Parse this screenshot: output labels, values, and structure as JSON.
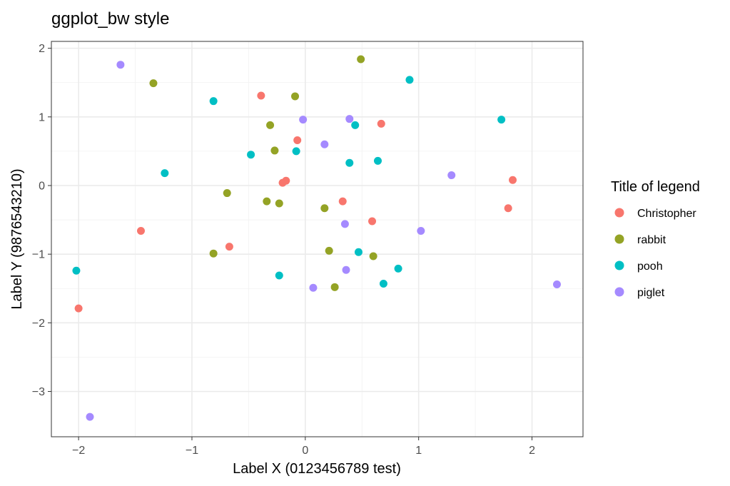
{
  "chart_data": {
    "type": "scatter",
    "title": "ggplot_bw style",
    "xlabel": "Label X (0123456789 test)",
    "ylabel": "Label Y (9876543210)",
    "xlim": [
      -2.24,
      2.45
    ],
    "ylim": [
      -3.66,
      2.1
    ],
    "xticks": [
      -2,
      -1,
      0,
      1,
      2
    ],
    "yticks": [
      -3,
      -2,
      -1,
      0,
      1,
      2
    ],
    "xtick_labels": [
      "−2",
      "−1",
      "0",
      "1",
      "2"
    ],
    "ytick_labels": [
      "−3",
      "−2",
      "−1",
      "0",
      "1",
      "2"
    ],
    "grid": true,
    "legend": {
      "title": "Title of legend",
      "position": "right"
    },
    "series": [
      {
        "name": "Christopher",
        "color": "#F8766D",
        "points": [
          {
            "x": -0.39,
            "y": 1.31
          },
          {
            "x": -0.07,
            "y": 0.66
          },
          {
            "x": -0.17,
            "y": 0.07
          },
          {
            "x": -0.2,
            "y": 0.04
          },
          {
            "x": 0.67,
            "y": 0.9
          },
          {
            "x": 0.33,
            "y": -0.23
          },
          {
            "x": 0.59,
            "y": -0.52
          },
          {
            "x": 1.83,
            "y": 0.08
          },
          {
            "x": 1.79,
            "y": -0.33
          },
          {
            "x": -1.45,
            "y": -0.66
          },
          {
            "x": -0.67,
            "y": -0.89
          },
          {
            "x": -2.0,
            "y": -1.79
          }
        ]
      },
      {
        "name": "rabbit",
        "color": "#94A325",
        "points": [
          {
            "x": 0.49,
            "y": 1.84
          },
          {
            "x": -1.34,
            "y": 1.49
          },
          {
            "x": -0.09,
            "y": 1.3
          },
          {
            "x": -0.31,
            "y": 0.88
          },
          {
            "x": -0.27,
            "y": 0.51
          },
          {
            "x": -0.69,
            "y": -0.11
          },
          {
            "x": -0.34,
            "y": -0.23
          },
          {
            "x": -0.23,
            "y": -0.26
          },
          {
            "x": 0.17,
            "y": -0.33
          },
          {
            "x": 0.21,
            "y": -0.95
          },
          {
            "x": 0.6,
            "y": -1.03
          },
          {
            "x": -0.81,
            "y": -0.99
          },
          {
            "x": 0.26,
            "y": -1.48
          }
        ]
      },
      {
        "name": "pooh",
        "color": "#00BFC4",
        "points": [
          {
            "x": 0.92,
            "y": 1.54
          },
          {
            "x": -0.81,
            "y": 1.23
          },
          {
            "x": 1.73,
            "y": 0.96
          },
          {
            "x": 0.44,
            "y": 0.88
          },
          {
            "x": -0.48,
            "y": 0.45
          },
          {
            "x": -0.08,
            "y": 0.5
          },
          {
            "x": 0.64,
            "y": 0.36
          },
          {
            "x": 0.39,
            "y": 0.33
          },
          {
            "x": -1.24,
            "y": 0.18
          },
          {
            "x": -2.02,
            "y": -1.24
          },
          {
            "x": -0.23,
            "y": -1.31
          },
          {
            "x": 0.47,
            "y": -0.97
          },
          {
            "x": 0.82,
            "y": -1.21
          },
          {
            "x": 0.69,
            "y": -1.43
          }
        ]
      },
      {
        "name": "piglet",
        "color": "#A58AFF",
        "points": [
          {
            "x": -1.63,
            "y": 1.76
          },
          {
            "x": -0.02,
            "y": 0.96
          },
          {
            "x": 0.39,
            "y": 0.97
          },
          {
            "x": 0.17,
            "y": 0.6
          },
          {
            "x": 1.29,
            "y": 0.15
          },
          {
            "x": 0.35,
            "y": -0.56
          },
          {
            "x": 1.02,
            "y": -0.66
          },
          {
            "x": 0.36,
            "y": -1.23
          },
          {
            "x": 0.07,
            "y": -1.49
          },
          {
            "x": 2.22,
            "y": -1.44
          },
          {
            "x": -1.9,
            "y": -3.37
          }
        ]
      }
    ]
  }
}
